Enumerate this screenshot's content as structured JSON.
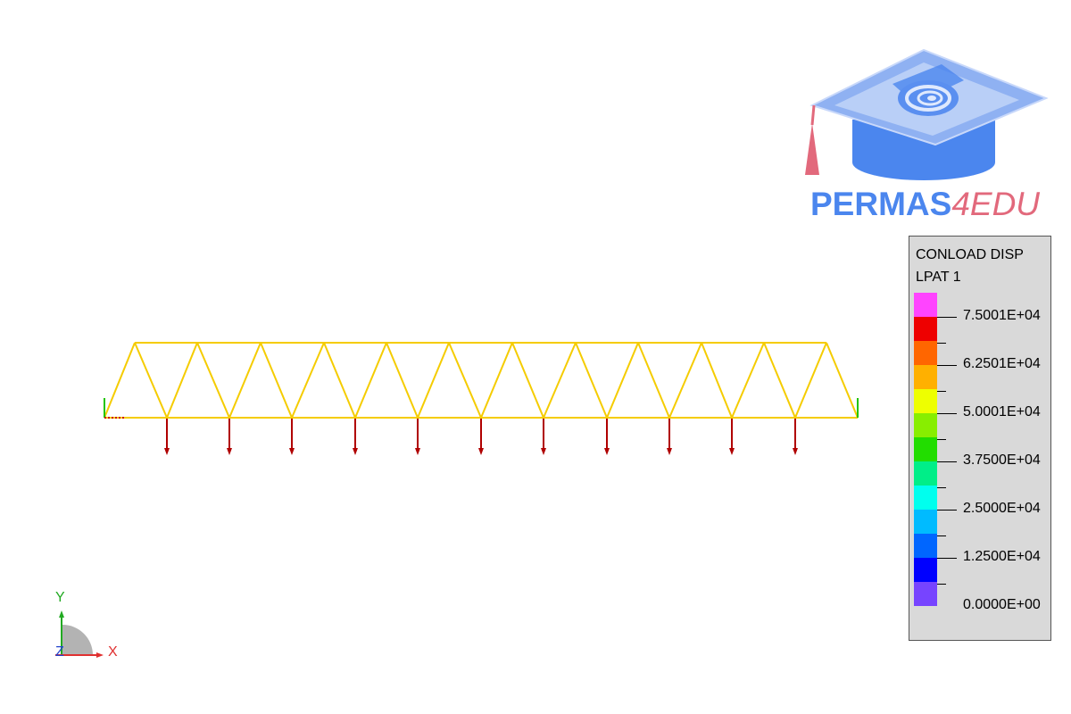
{
  "brand": {
    "name_main": "PERMAS",
    "name_accent": "4EDU"
  },
  "legend": {
    "title_line1": "CONLOAD DISP",
    "title_line2": "LPAT 1",
    "swatch_colors": [
      "#ff44ff",
      "#ee0000",
      "#ff6600",
      "#ffb000",
      "#eeff00",
      "#88ee00",
      "#22dd00",
      "#00ee88",
      "#00ffee",
      "#00bbff",
      "#0066ff",
      "#0000ff",
      "#7744ff"
    ],
    "labels": [
      "7.5001E+04",
      "6.2501E+04",
      "5.0001E+04",
      "3.7500E+04",
      "2.5000E+04",
      "1.2500E+04",
      "0.0000E+00"
    ]
  },
  "colors": {
    "truss": "#f5cc00",
    "load_arrow": "#b00000",
    "support": "#22c400",
    "axis_x": "#e03030",
    "axis_y": "#22aa22",
    "axis_z": "#2244cc"
  },
  "axes": {
    "x_label": "X",
    "y_label": "Y",
    "z_label": "Z"
  }
}
